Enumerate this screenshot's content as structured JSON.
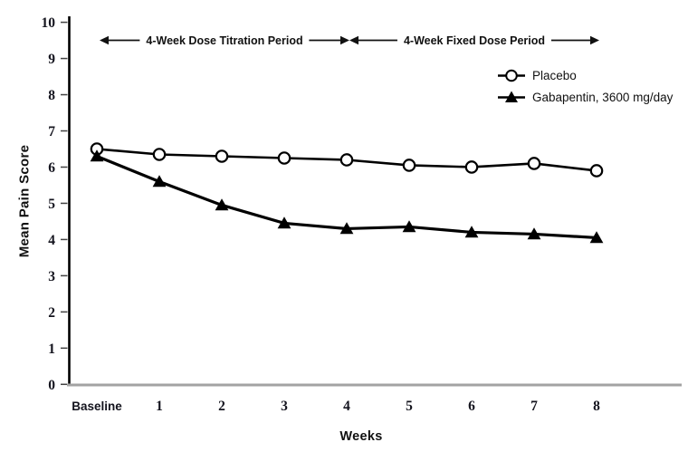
{
  "page": {
    "background": "#ffffff"
  },
  "chart_data": {
    "type": "line",
    "title": "",
    "xlabel": "Weeks",
    "ylabel": "Mean Pain Score",
    "categories": [
      "Baseline",
      "1",
      "2",
      "3",
      "4",
      "5",
      "6",
      "7",
      "8"
    ],
    "yticks": [
      0,
      1,
      2,
      3,
      4,
      5,
      6,
      7,
      8,
      9,
      10
    ],
    "ylim": [
      0,
      10
    ],
    "grid": false,
    "legend_position": "upper-right",
    "series": [
      {
        "name": "Placebo",
        "marker": "open-circle",
        "values": [
          6.5,
          6.35,
          6.3,
          6.25,
          6.2,
          6.05,
          6.0,
          6.1,
          5.9
        ]
      },
      {
        "name": "Gabapentin, 3600 mg/day",
        "marker": "filled-triangle",
        "values": [
          6.3,
          5.6,
          4.95,
          4.45,
          4.3,
          4.35,
          4.2,
          4.15,
          4.05
        ]
      }
    ],
    "annotations": [
      {
        "text": "4-Week Dose Titration Period",
        "style": "double-arrow",
        "from_category": "Baseline",
        "to_category": "4"
      },
      {
        "text": "4-Week Fixed Dose Period",
        "style": "double-arrow",
        "from_category": "4",
        "to_category": "8"
      }
    ],
    "colors": {
      "series_line": "#000000",
      "y_axis_line": "#000000",
      "x_axis_line": "#a3a3a3",
      "tick_text": "#14141e",
      "annotation_arrow": "#111111"
    }
  }
}
